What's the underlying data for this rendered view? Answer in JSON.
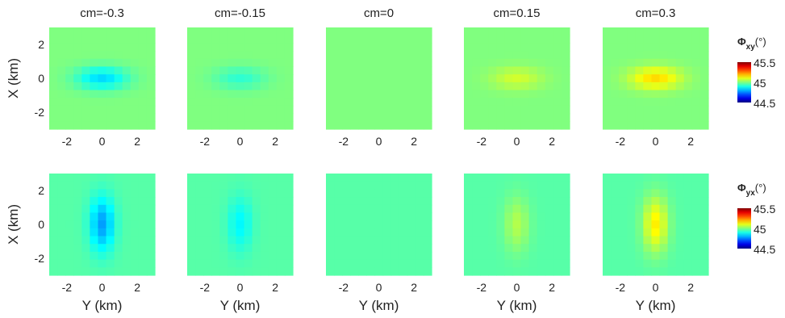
{
  "chart_data": {
    "type": "heatmap",
    "layout": "2x5 grid",
    "column_titles": [
      "cm=-0.3",
      "cm=-0.15",
      "cm=0",
      "cm=0.15",
      "cm=0.3"
    ],
    "cm_values": [
      -0.3,
      -0.15,
      0,
      0.15,
      0.3
    ],
    "xlabel": "Y (km)",
    "ylabel": "X (km)",
    "x_ticks": [
      -2,
      0,
      2
    ],
    "y_ticks": [
      2,
      0,
      -2
    ],
    "xlim": [
      -3,
      3
    ],
    "ylim": [
      -3,
      3
    ],
    "rows": [
      {
        "quantity": "phi_xy",
        "colorbar_label": "Φxy(°)",
        "colorbar_label_main": "Φ",
        "colorbar_label_sub": "xy",
        "colorbar_label_unit": "(°)",
        "background_value": 45.0,
        "anomaly_peak_deviation": [
          -0.16,
          -0.08,
          0.0,
          0.08,
          0.16
        ],
        "anomaly_orientation": "elongated along Y, centered at origin"
      },
      {
        "quantity": "phi_yx",
        "colorbar_label": "Φyx(°)",
        "colorbar_label_main": "Φ",
        "colorbar_label_sub": "yx",
        "colorbar_label_unit": "(°)",
        "background_value": 44.96,
        "anomaly_peak_deviation": [
          -0.18,
          -0.09,
          0.0,
          0.09,
          0.18
        ],
        "anomaly_orientation": "elongated along X, centered at origin"
      }
    ],
    "colorbar": {
      "min": 44.5,
      "max": 45.5,
      "tick_labels": [
        "45.5",
        "45",
        "44.5"
      ],
      "colormap": "jet"
    }
  }
}
